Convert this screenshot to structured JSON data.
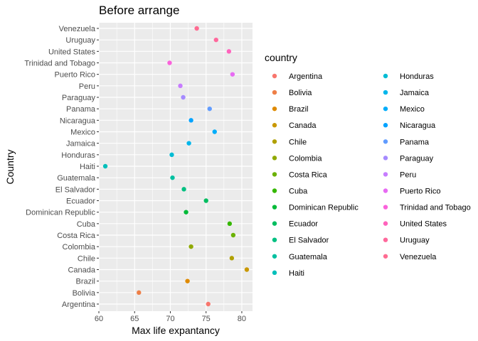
{
  "chart_data": {
    "type": "scatter",
    "title": "Before arrange",
    "xlabel": "Max life expantancy",
    "ylabel": "Country",
    "xlim": [
      60,
      81.5
    ],
    "xticks": [
      "60",
      "65",
      "70",
      "75",
      "80"
    ],
    "grid": true,
    "legend": {
      "title": "country",
      "placement": "right",
      "columns": 2
    },
    "categories": [
      "Argentina",
      "Bolivia",
      "Brazil",
      "Canada",
      "Chile",
      "Colombia",
      "Costa Rica",
      "Cuba",
      "Dominican Republic",
      "Ecuador",
      "El Salvador",
      "Guatemala",
      "Haiti",
      "Honduras",
      "Jamaica",
      "Mexico",
      "Nicaragua",
      "Panama",
      "Paraguay",
      "Peru",
      "Puerto Rico",
      "Trinidad and Tobago",
      "United States",
      "Uruguay",
      "Venezuela"
    ],
    "values": [
      75.3,
      65.6,
      72.4,
      80.7,
      78.6,
      72.9,
      78.8,
      78.3,
      72.2,
      75.0,
      71.9,
      70.3,
      60.9,
      70.2,
      72.6,
      76.2,
      72.9,
      75.5,
      71.8,
      71.4,
      78.7,
      69.9,
      78.2,
      76.4,
      73.7
    ],
    "colors": [
      "#F8766D",
      "#EE7F47",
      "#DF8A00",
      "#C99800",
      "#B0A000",
      "#90A900",
      "#6BB100",
      "#35B700",
      "#00BA38",
      "#00BD60",
      "#00C081",
      "#00C0A0",
      "#00BFBA",
      "#00BCD4",
      "#00B6EB",
      "#00ADFA",
      "#00A3FF",
      "#619CFF",
      "#A58AFF",
      "#C77CFF",
      "#E76BF3",
      "#FA62DB",
      "#FF63BC",
      "#FF689C",
      "#FF6C92"
    ]
  }
}
